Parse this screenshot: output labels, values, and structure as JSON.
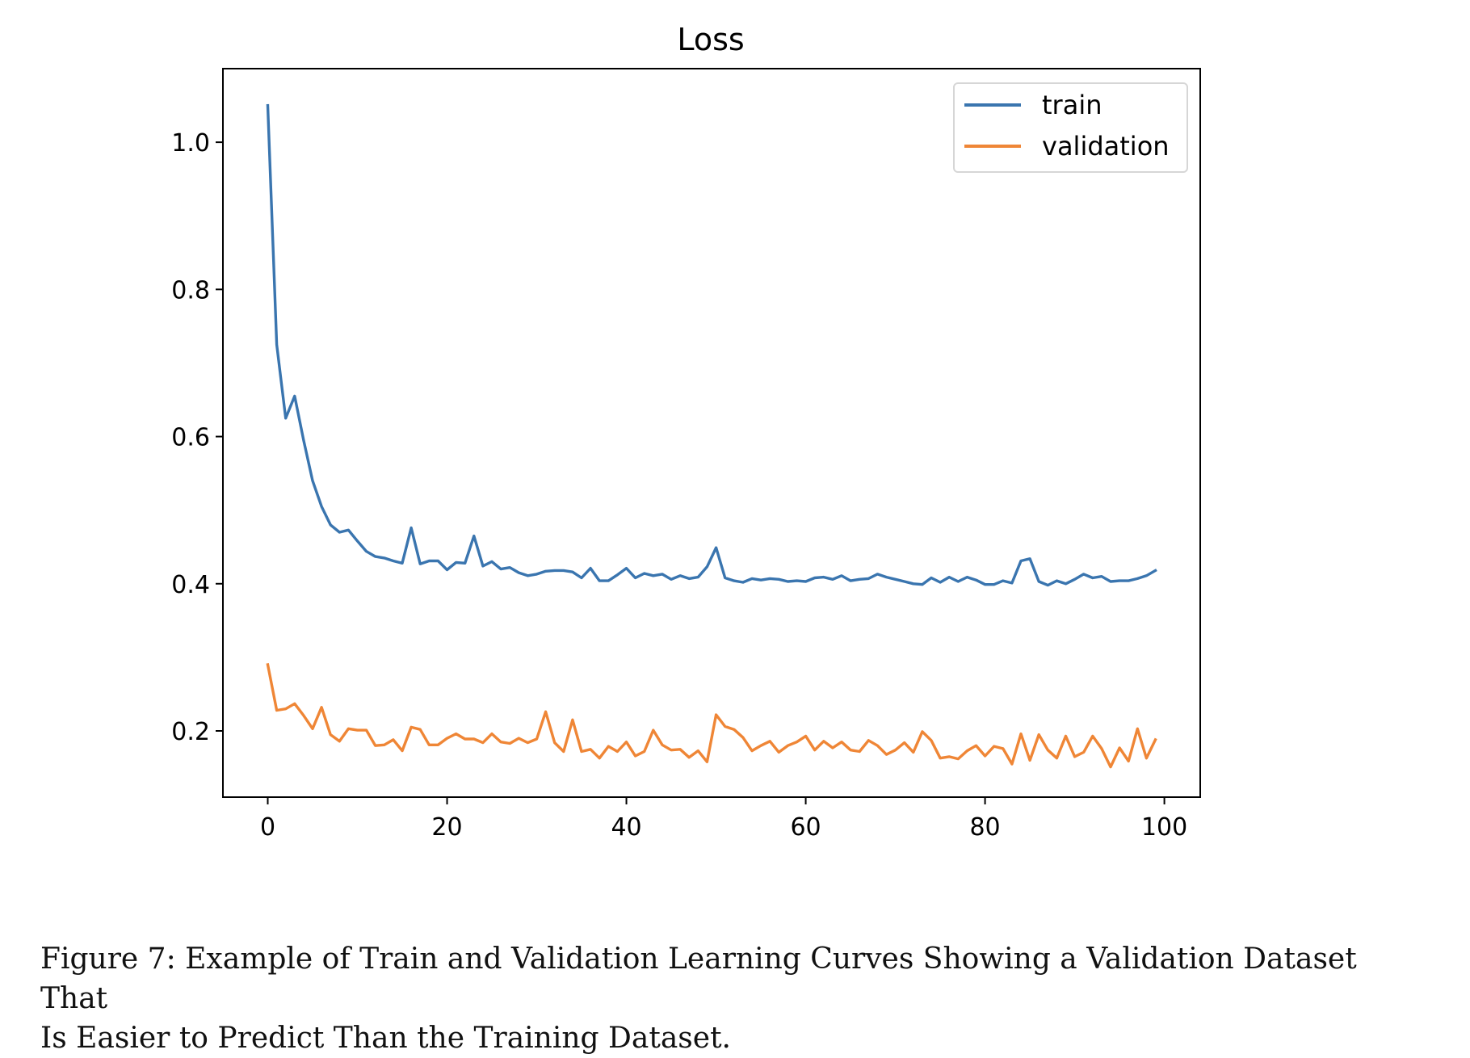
{
  "chart_data": {
    "type": "line",
    "title": "Loss",
    "xlabel": "",
    "ylabel": "",
    "xlim": [
      -5,
      104
    ],
    "ylim": [
      0.11,
      1.1
    ],
    "xticks": [
      0,
      20,
      40,
      60,
      80,
      100
    ],
    "yticks": [
      0.2,
      0.4,
      0.6,
      0.8,
      1.0
    ],
    "xtick_labels": [
      "0",
      "20",
      "40",
      "60",
      "80",
      "100"
    ],
    "ytick_labels": [
      "0.2",
      "0.4",
      "0.6",
      "0.8",
      "1.0"
    ],
    "grid": false,
    "legend": "top-right",
    "x": [
      0,
      1,
      2,
      3,
      4,
      5,
      6,
      7,
      8,
      9,
      10,
      11,
      12,
      13,
      14,
      15,
      16,
      17,
      18,
      19,
      20,
      21,
      22,
      23,
      24,
      25,
      26,
      27,
      28,
      29,
      30,
      31,
      32,
      33,
      34,
      35,
      36,
      37,
      38,
      39,
      40,
      41,
      42,
      43,
      44,
      45,
      46,
      47,
      48,
      49,
      50,
      51,
      52,
      53,
      54,
      55,
      56,
      57,
      58,
      59,
      60,
      61,
      62,
      63,
      64,
      65,
      66,
      67,
      68,
      69,
      70,
      71,
      72,
      73,
      74,
      75,
      76,
      77,
      78,
      79,
      80,
      81,
      82,
      83,
      84,
      85,
      86,
      87,
      88,
      89,
      90,
      91,
      92,
      93,
      94,
      95,
      96,
      97,
      98,
      99
    ],
    "series": [
      {
        "name": "train",
        "color": "#3a75af",
        "values": [
          1.05,
          0.725,
          0.625,
          0.655,
          0.595,
          0.54,
          0.505,
          0.48,
          0.47,
          0.473,
          0.458,
          0.444,
          0.437,
          0.435,
          0.431,
          0.428,
          0.476,
          0.427,
          0.431,
          0.431,
          0.419,
          0.429,
          0.428,
          0.465,
          0.424,
          0.43,
          0.42,
          0.422,
          0.415,
          0.411,
          0.413,
          0.417,
          0.418,
          0.418,
          0.416,
          0.408,
          0.421,
          0.404,
          0.404,
          0.412,
          0.421,
          0.408,
          0.414,
          0.411,
          0.413,
          0.406,
          0.411,
          0.407,
          0.409,
          0.423,
          0.449,
          0.408,
          0.404,
          0.402,
          0.407,
          0.405,
          0.407,
          0.406,
          0.403,
          0.404,
          0.403,
          0.408,
          0.409,
          0.406,
          0.411,
          0.404,
          0.406,
          0.407,
          0.413,
          0.409,
          0.406,
          0.403,
          0.4,
          0.399,
          0.408,
          0.402,
          0.409,
          0.403,
          0.409,
          0.405,
          0.399,
          0.399,
          0.404,
          0.401,
          0.431,
          0.434,
          0.403,
          0.398,
          0.404,
          0.4,
          0.406,
          0.413,
          0.408,
          0.41,
          0.403,
          0.404,
          0.404,
          0.407,
          0.411,
          0.418
        ]
      },
      {
        "name": "validation",
        "color": "#ef8636",
        "values": [
          0.29,
          0.228,
          0.23,
          0.237,
          0.221,
          0.203,
          0.232,
          0.195,
          0.186,
          0.203,
          0.201,
          0.201,
          0.18,
          0.181,
          0.188,
          0.173,
          0.205,
          0.202,
          0.181,
          0.181,
          0.19,
          0.196,
          0.189,
          0.189,
          0.184,
          0.196,
          0.185,
          0.183,
          0.19,
          0.184,
          0.189,
          0.226,
          0.184,
          0.172,
          0.215,
          0.172,
          0.175,
          0.163,
          0.179,
          0.172,
          0.185,
          0.166,
          0.172,
          0.201,
          0.181,
          0.174,
          0.175,
          0.164,
          0.173,
          0.158,
          0.222,
          0.206,
          0.202,
          0.191,
          0.173,
          0.18,
          0.186,
          0.171,
          0.18,
          0.185,
          0.193,
          0.174,
          0.186,
          0.177,
          0.185,
          0.174,
          0.172,
          0.187,
          0.18,
          0.168,
          0.174,
          0.184,
          0.171,
          0.199,
          0.187,
          0.163,
          0.165,
          0.162,
          0.173,
          0.18,
          0.166,
          0.179,
          0.176,
          0.155,
          0.196,
          0.16,
          0.195,
          0.174,
          0.163,
          0.193,
          0.165,
          0.171,
          0.193,
          0.176,
          0.151,
          0.177,
          0.159,
          0.203,
          0.163,
          0.188
        ]
      }
    ]
  },
  "caption": {
    "line1": "Figure 7: Example of Train and Validation Learning Curves Showing a Validation Dataset That",
    "line2": "Is Easier to Predict Than the Training Dataset."
  }
}
